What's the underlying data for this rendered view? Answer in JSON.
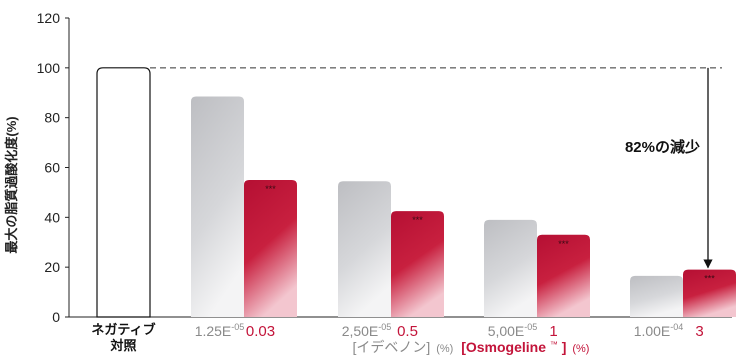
{
  "chart_data": {
    "type": "bar",
    "ylabel": "最大の脂質過酸化度(%)",
    "ylim": [
      0,
      120
    ],
    "yticks": [
      0,
      20,
      40,
      60,
      80,
      100,
      120
    ],
    "grid": false,
    "reference_line": 100,
    "control": {
      "label_line1": "ネガティブ",
      "label_line2": "対照",
      "value": 100
    },
    "groups": [
      {
        "idebenone": "1.25E",
        "idebenone_exp": "-05",
        "osmogeline": "0.03",
        "values": [
          88.5,
          55
        ],
        "marker": "***"
      },
      {
        "idebenone": "2,50E",
        "idebenone_exp": "-05",
        "osmogeline": "0.5",
        "values": [
          54.5,
          42.5
        ],
        "marker": "***"
      },
      {
        "idebenone": "5,00E",
        "idebenone_exp": "-05",
        "osmogeline": "1",
        "values": [
          39,
          33
        ],
        "marker": "***"
      },
      {
        "idebenone": "1.00E",
        "idebenone_exp": "-04",
        "osmogeline": "3",
        "values": [
          16.5,
          19
        ],
        "marker": "***"
      }
    ],
    "series": [
      {
        "name": "イデベノン",
        "color": "#c4c5c9"
      },
      {
        "name": "Osmogeline",
        "color": "#c3143a"
      }
    ],
    "xlabel": {
      "part1": "[イデベノン]",
      "part1_unit": "(%)",
      "part2": "[Osmogeline",
      "part2_sup": "™",
      "part2_close": "]",
      "part2_unit": "(%)"
    },
    "annotation": {
      "text": "82%の減少",
      "from_value": 100,
      "to_value": 19
    },
    "colors": {
      "gray": "#c4c5c9",
      "red": "#c3143a",
      "label_gray": "#8a8a8a",
      "label_red": "#c3143a"
    }
  }
}
